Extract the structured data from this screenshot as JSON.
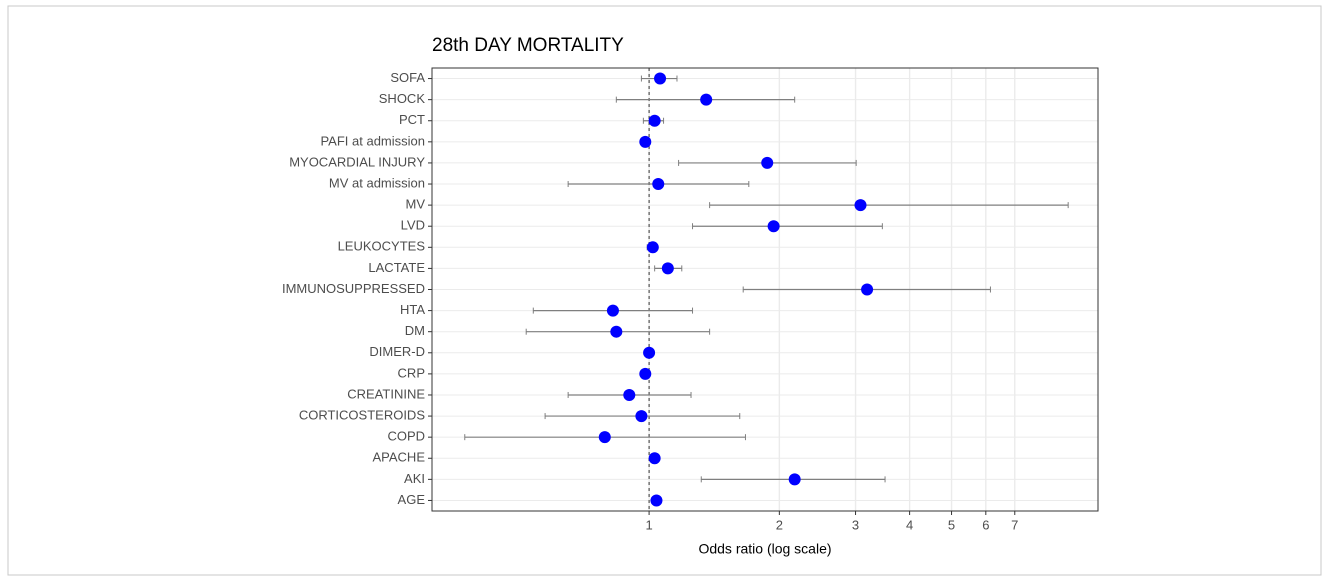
{
  "chart_data": {
    "type": "forest",
    "title": "28th DAY MORTALITY",
    "x_label": "Odds ratio (log scale)",
    "x_scale": "log",
    "grid": true,
    "color": "#0000ff",
    "errorbar_color": "#7f7f7f",
    "reference_line": 1,
    "categories": [
      "SOFA",
      "SHOCK",
      "PCT",
      "PAFI at admission",
      "MYOCARDIAL INJURY",
      "MV at admission",
      "MV",
      "LVD",
      "LEUKOCYTES",
      "LACTATE",
      "IMMUNOSUPPRESSED",
      "HTA",
      "DM",
      "DIMER-D",
      "CRP",
      "CREATININE",
      "CORTICOSTEROIDS",
      "COPD",
      "APACHE",
      "AKI",
      "AGE"
    ],
    "values": [
      1.06,
      1.355,
      1.03,
      0.98,
      1.875,
      1.05,
      3.08,
      1.94,
      1.02,
      1.105,
      3.19,
      0.825,
      0.84,
      1.0,
      0.98,
      0.9,
      0.96,
      0.79,
      1.03,
      2.17,
      1.04
    ],
    "lower": [
      0.96,
      0.84,
      0.97,
      0.97,
      1.17,
      0.65,
      1.38,
      1.26,
      0.99,
      1.03,
      1.65,
      0.54,
      0.52,
      0.99,
      0.97,
      0.65,
      0.575,
      0.375,
      1.02,
      1.32,
      1.03
    ],
    "upper": [
      1.16,
      2.17,
      1.08,
      0.99,
      3.01,
      1.7,
      9.3,
      3.46,
      1.04,
      1.19,
      6.15,
      1.26,
      1.38,
      1.01,
      0.99,
      1.25,
      1.62,
      1.67,
      1.05,
      3.51,
      1.05
    ],
    "xlim": [
      0.315,
      10.9
    ],
    "xticks": [
      1,
      2,
      3,
      4,
      5,
      6,
      7
    ]
  }
}
